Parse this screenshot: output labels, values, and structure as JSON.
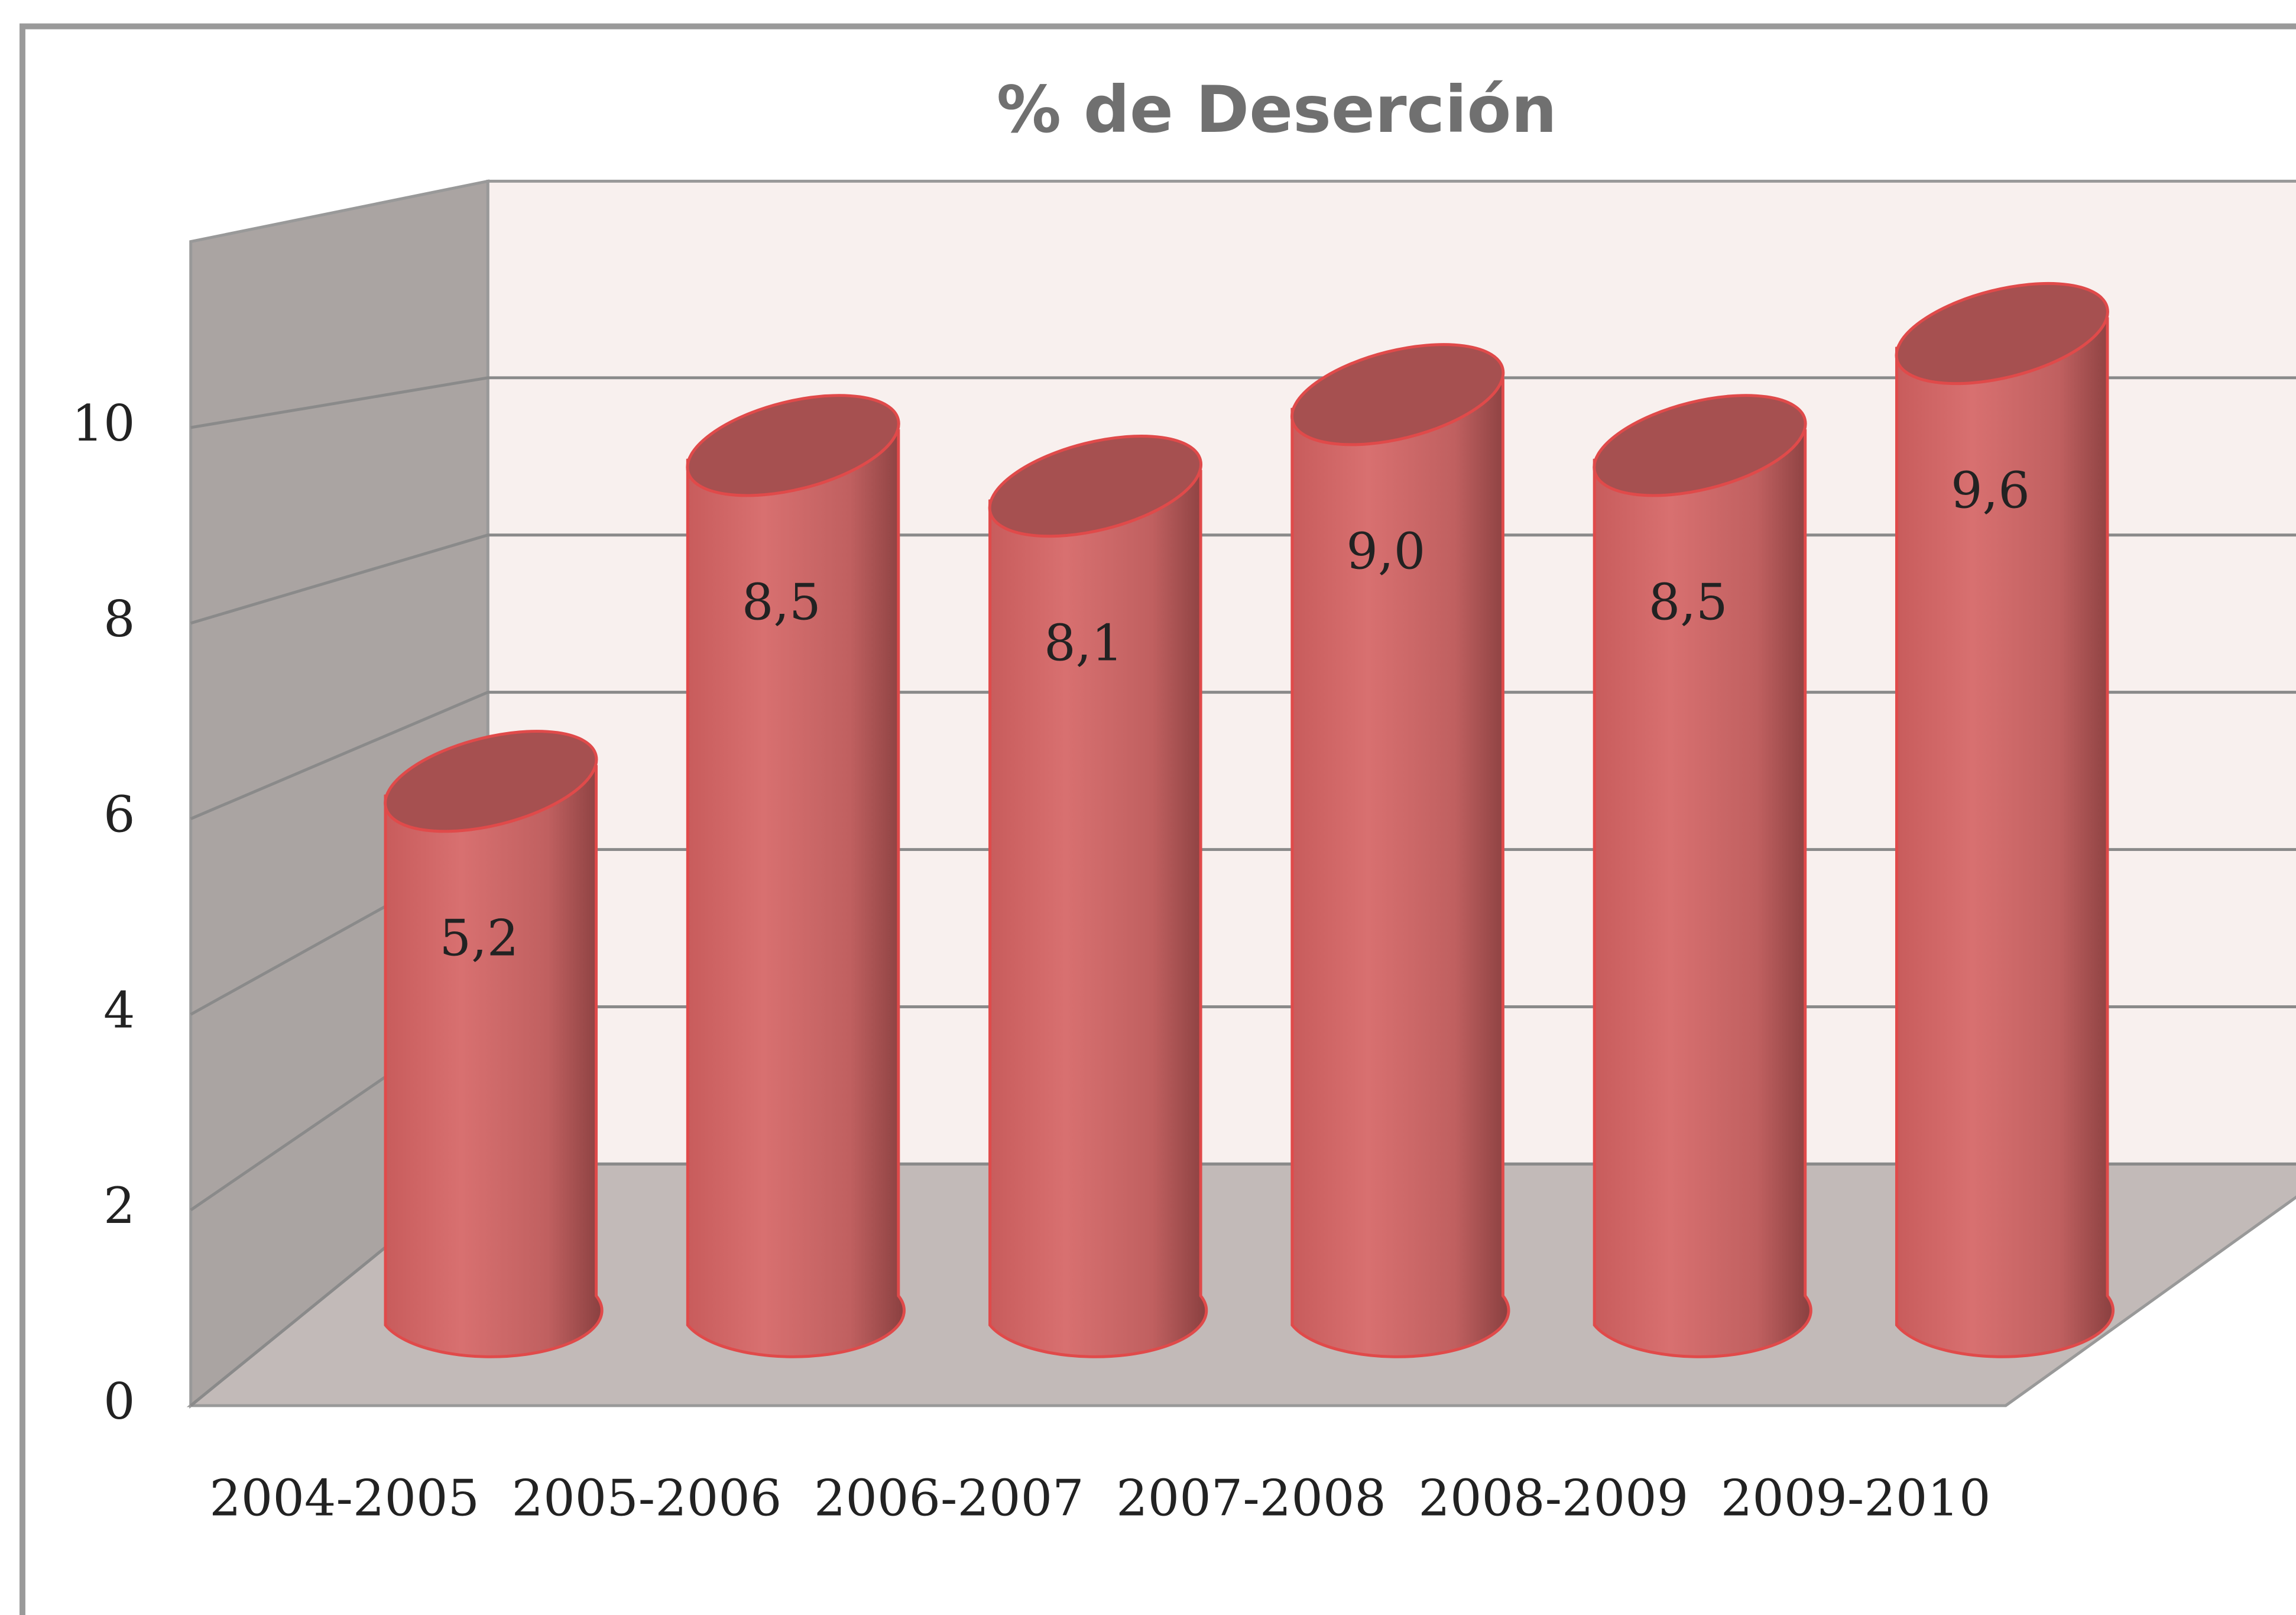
{
  "chart_data": {
    "type": "bar3d",
    "title": "% de Deserción",
    "categories": [
      "2004-2005",
      "2005-2006",
      "2006-2007",
      "2007-2008",
      "2008-2009",
      "2009-2010"
    ],
    "values": [
      5.2,
      8.5,
      8.1,
      9.0,
      8.5,
      9.6
    ],
    "value_labels": [
      "5,2",
      "8,5",
      "8,1",
      "9,0",
      "8,5",
      "9,6"
    ],
    "color": "#d46a6a",
    "ylim": [
      0,
      10
    ],
    "yticks": [
      0,
      2,
      4,
      6,
      8,
      10
    ],
    "grid": true
  }
}
